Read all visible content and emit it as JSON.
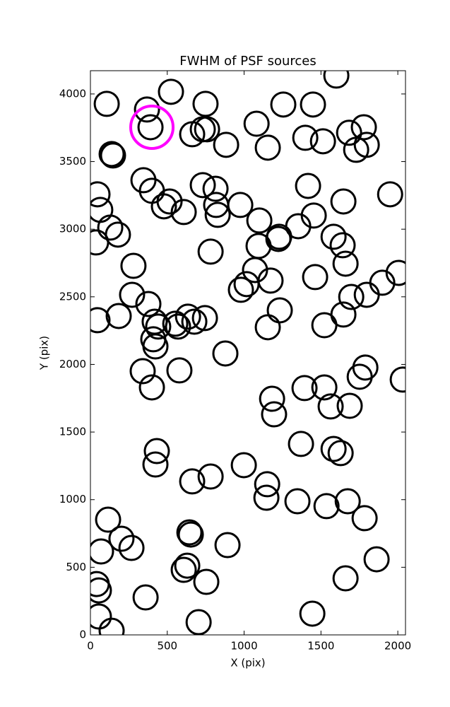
{
  "chart_data": {
    "type": "scatter",
    "title": "FWHM of PSF sources",
    "x_label": "X (pix)",
    "y_label": "Y (pix)",
    "xlim": [
      0,
      2050
    ],
    "ylim": [
      0,
      4172
    ],
    "xticks": [
      0,
      500,
      1000,
      1500,
      2000
    ],
    "yticks": [
      0,
      500,
      1000,
      1500,
      2000,
      2500,
      3000,
      3500,
      4000
    ],
    "series": [
      {
        "color": "#000000",
        "x": [
          106,
          368,
          524,
          749,
          1600,
          1255,
          1448,
          391,
          662,
          731,
          759,
          883,
          1081,
          1154,
          1398,
          1513,
          1683,
          1729,
          1779,
          1798,
          138,
          147,
          345,
          400,
          515,
          478,
          607,
          46,
          64,
          129,
          179,
          37,
          731,
          814,
          818,
          828,
          975,
          782,
          1099,
          1094,
          1228,
          1223,
          1352,
          1416,
          1453,
          1646,
          1582,
          1641,
          1660,
          1462,
          1950,
          280,
          271,
          377,
          1071,
          1172,
          1016,
          979,
          2005,
          1899,
          1798,
          1697,
          1646,
          1522,
          1232,
          1154,
          46,
          184,
          418,
          441,
          552,
          570,
          635,
          676,
          745,
          409,
          423,
          340,
          400,
          579,
          878,
          1789,
          1752,
          2032,
          1393,
          1522,
          1563,
          1687,
          1182,
          1195,
          1370,
          1582,
          1628,
          432,
          423,
          998,
          662,
          782,
          1150,
          1145,
          1347,
          1536,
          1674,
          1784,
          115,
          202,
          267,
          69,
          644,
          653,
          892,
          1862,
          630,
          607,
          754,
          41,
          55,
          359,
          1660,
          55,
          138,
          704,
          1444
        ],
        "y": [
          3927,
          3885,
          4016,
          3927,
          4136,
          3922,
          3922,
          3754,
          3702,
          3739,
          3739,
          3624,
          3780,
          3603,
          3676,
          3650,
          3713,
          3587,
          3754,
          3624,
          3556,
          3545,
          3362,
          3284,
          3205,
          3169,
          3127,
          3258,
          3143,
          3012,
          2960,
          2902,
          3326,
          3299,
          3179,
          3106,
          3179,
          2834,
          3064,
          2876,
          2944,
          2928,
          3022,
          3320,
          3101,
          3205,
          2944,
          2881,
          2745,
          2646,
          3258,
          2729,
          2515,
          2447,
          2698,
          2620,
          2594,
          2552,
          2677,
          2604,
          2515,
          2499,
          2369,
          2290,
          2400,
          2275,
          2327,
          2358,
          2316,
          2280,
          2301,
          2280,
          2353,
          2316,
          2343,
          2186,
          2133,
          1950,
          1830,
          1956,
          2081,
          1977,
          1909,
          1888,
          1825,
          1830,
          1689,
          1694,
          1746,
          1631,
          1412,
          1375,
          1344,
          1359,
          1260,
          1255,
          1135,
          1171,
          1114,
          1014,
          988,
          952,
          988,
          863,
          852,
          711,
          643,
          617,
          758,
          742,
          664,
          559,
          512,
          481,
          392,
          376,
          329,
          277,
          418,
          136,
          31,
          94,
          157
        ]
      },
      {
        "color": "#ff00ff",
        "x": [
          400
        ],
        "y": [
          3754
        ]
      }
    ]
  }
}
